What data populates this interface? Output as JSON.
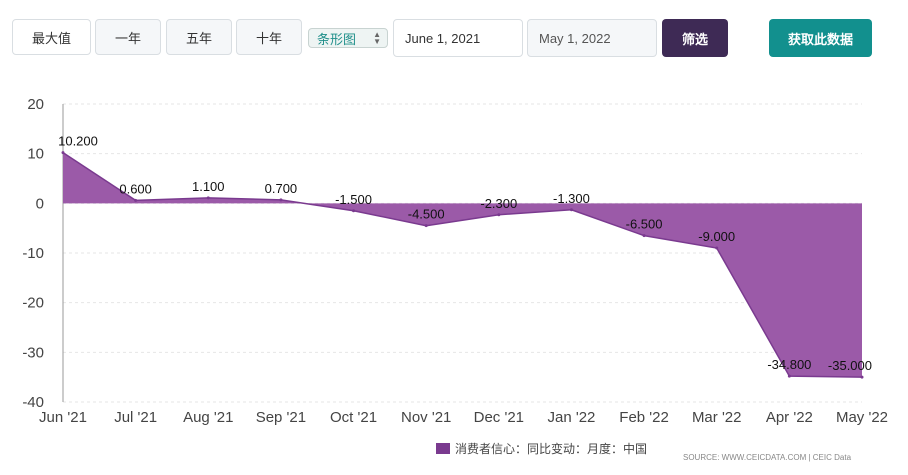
{
  "toolbar": {
    "range_buttons": [
      "最大值",
      "一年",
      "五年",
      "十年"
    ],
    "chart_type": "条形图",
    "start_date": "June 1, 2021",
    "end_date": "May 1, 2022",
    "filter_label": "筛选",
    "get_data_label": "获取此数据"
  },
  "colors": {
    "series": "#7a3a8f",
    "area": "#9b5aa8",
    "filter_bg": "#3e2a55",
    "get_bg": "#12908e"
  },
  "chart_data": {
    "type": "area",
    "categories": [
      "Jun '21",
      "Jul '21",
      "Aug '21",
      "Sep '21",
      "Oct '21",
      "Nov '21",
      "Dec '21",
      "Jan '22",
      "Feb '22",
      "Mar '22",
      "Apr '22",
      "May '22"
    ],
    "series": [
      {
        "name": "消费者信心：同比变动：月度：中国",
        "values": [
          10.2,
          0.6,
          1.1,
          0.7,
          -1.5,
          -4.5,
          -2.3,
          -1.3,
          -6.5,
          -9.0,
          -34.8,
          -35.0
        ],
        "labels": [
          "10.200",
          "0.600",
          "1.100",
          "0.700",
          "-1.500",
          "-4.500",
          "-2.300",
          "-1.300",
          "-6.500",
          "-9.000",
          "-34.800",
          "-35.000"
        ]
      }
    ],
    "yticks": [
      "20",
      "10",
      "0",
      "-10",
      "-20",
      "-30",
      "-40"
    ],
    "ylim": [
      -40,
      20
    ],
    "grid": true
  },
  "legend": {
    "label": "消费者信心：同比变动：月度：中国"
  },
  "source": "SOURCE: WWW.CEICDATA.COM | CEIC Data"
}
